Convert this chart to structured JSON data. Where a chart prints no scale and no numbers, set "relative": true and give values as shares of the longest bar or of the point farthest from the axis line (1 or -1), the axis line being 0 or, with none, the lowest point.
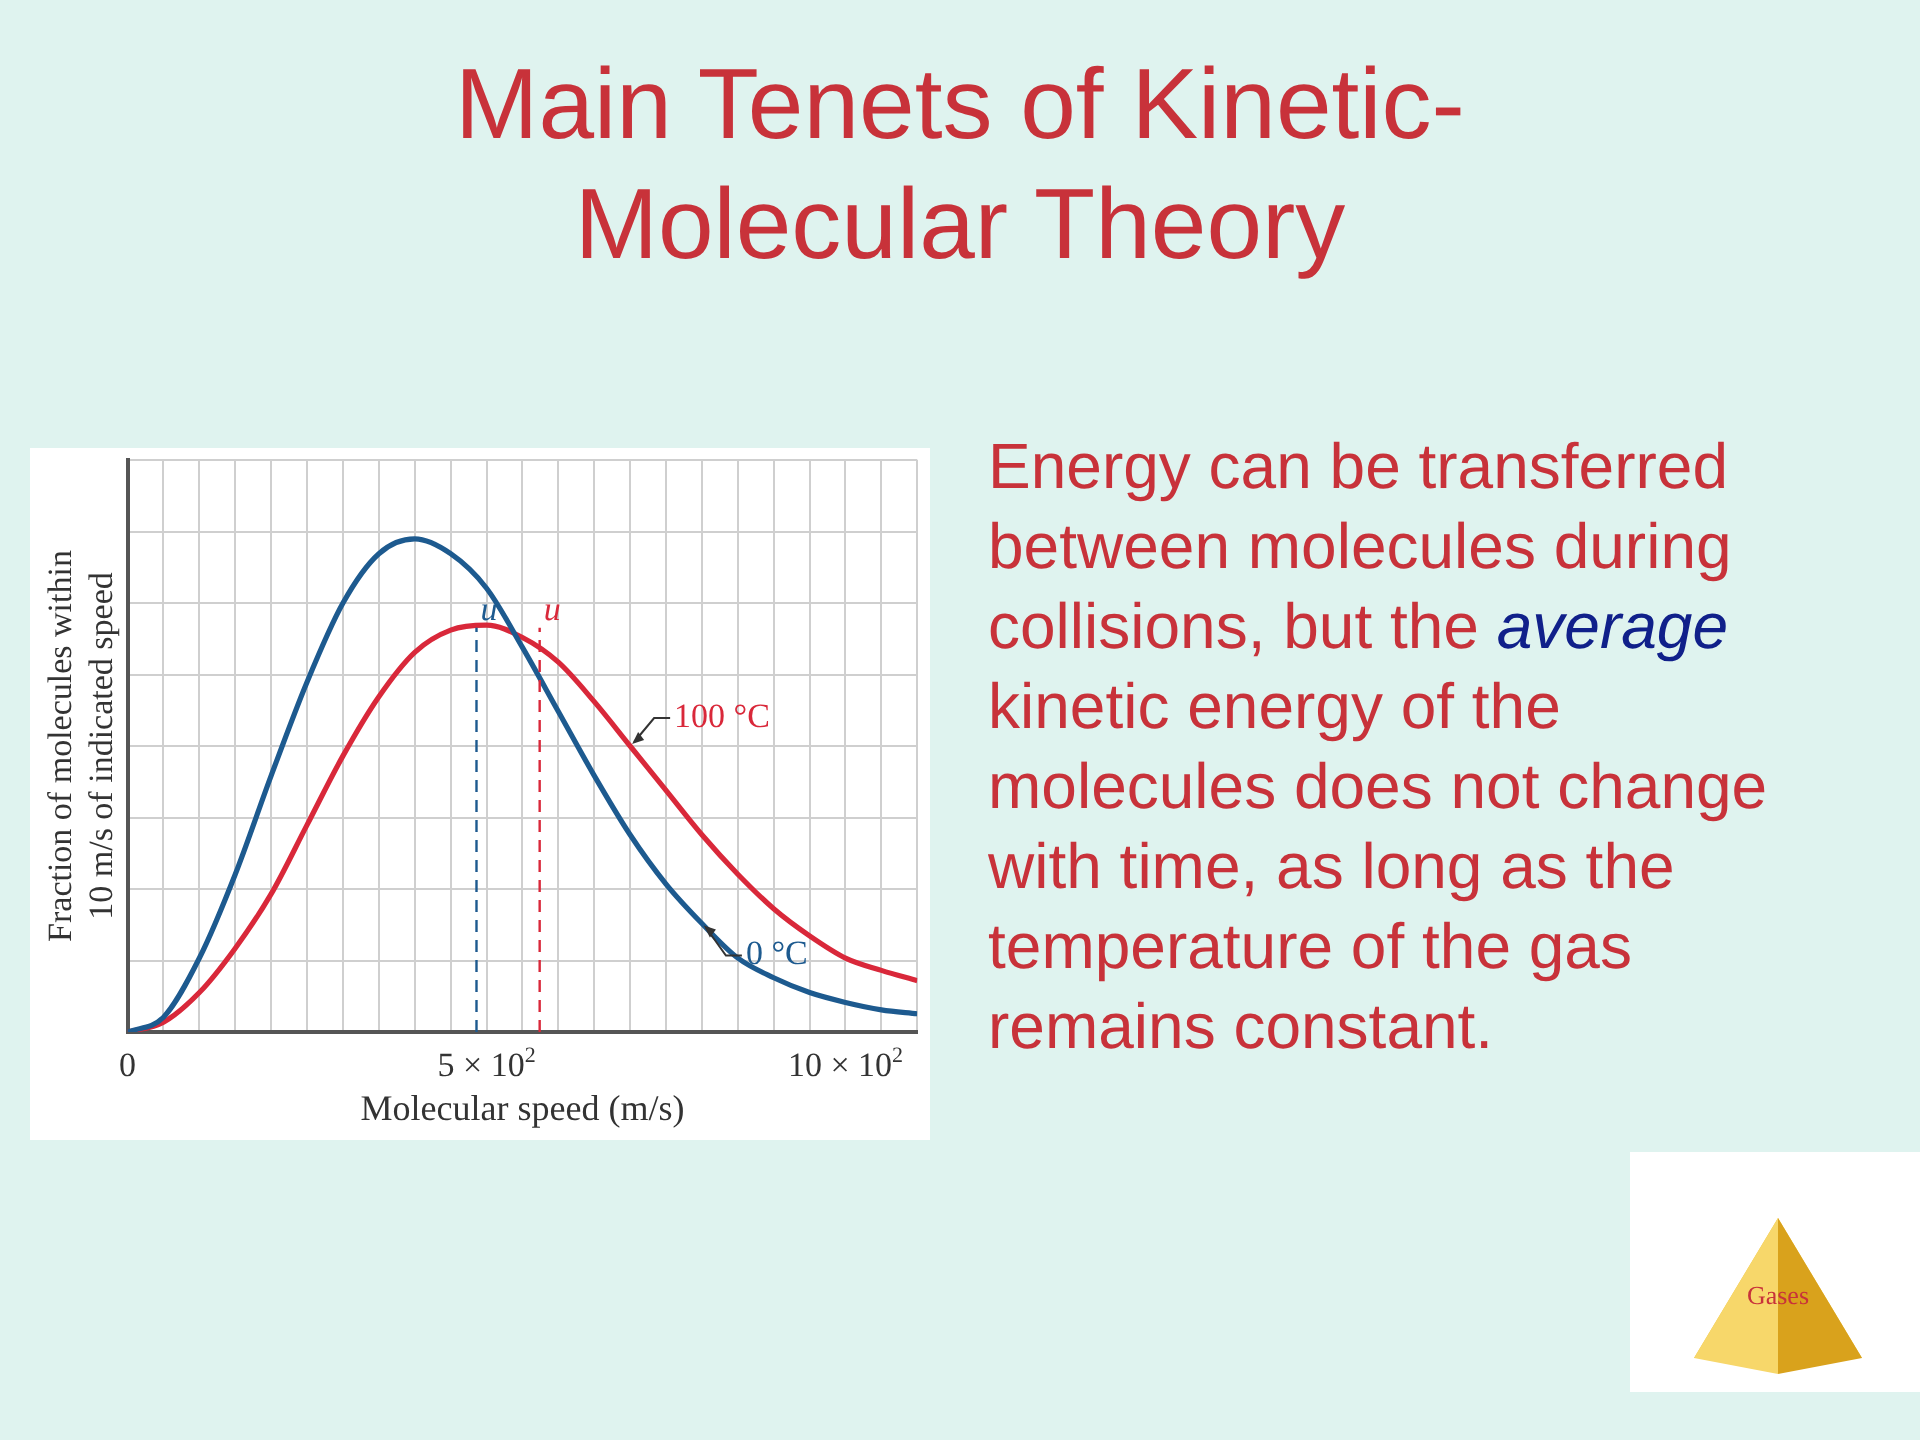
{
  "chart_data": {
    "type": "line",
    "title": "Main Tenets of Kinetic-Molecular Theory",
    "xlabel": "Molecular speed (m/s)",
    "ylabel": "Fraction of molecules within\n10 m/s of indicated speed",
    "relative": true,
    "grid": true,
    "legend": false,
    "marker": "none",
    "line_style": "solid",
    "x": [
      0,
      50,
      100,
      150,
      200,
      250,
      300,
      350,
      400,
      450,
      500,
      550,
      600,
      650,
      700,
      750,
      800,
      850,
      900,
      950,
      1000,
      1050,
      1100
    ],
    "series": [
      {
        "name": "0 °C",
        "color": "#1d5a8f",
        "values": [
          0,
          0.03,
          0.15,
          0.32,
          0.52,
          0.71,
          0.87,
          0.97,
          1.0,
          0.97,
          0.9,
          0.78,
          0.65,
          0.52,
          0.4,
          0.3,
          0.22,
          0.15,
          0.11,
          0.08,
          0.06,
          0.045,
          0.037
        ]
      },
      {
        "name": "100 °C",
        "color": "#d9283a",
        "values": [
          0,
          0.02,
          0.08,
          0.17,
          0.28,
          0.42,
          0.56,
          0.68,
          0.77,
          0.815,
          0.825,
          0.8,
          0.75,
          0.67,
          0.58,
          0.49,
          0.4,
          0.32,
          0.25,
          0.195,
          0.15,
          0.125,
          0.104
        ]
      }
    ],
    "xlim": [
      0,
      1100
    ],
    "xticks": [
      0,
      {
        "value": 50,
        "label": null
      },
      {
        "value": 100,
        "label": null
      },
      {
        "value": 150,
        "label": null
      },
      {
        "value": 200,
        "label": null
      },
      {
        "value": 250,
        "label": null
      },
      {
        "value": 300,
        "label": null
      },
      {
        "value": 350,
        "label": null
      },
      {
        "value": 400,
        "label": null
      },
      {
        "value": 450,
        "label": null
      },
      {
        "value": 500,
        "label": "5 × 10$^{2}$"
      },
      {
        "value": 550,
        "label": null
      },
      {
        "value": 600,
        "label": null
      },
      {
        "value": 650,
        "label": null
      },
      {
        "value": 700,
        "label": null
      },
      {
        "value": 750,
        "label": null
      },
      {
        "value": 800,
        "label": null
      },
      {
        "value": 850,
        "label": null
      },
      {
        "value": 900,
        "label": null
      },
      {
        "value": 950,
        "label": null
      },
      {
        "value": 1000,
        "label": "10 × 10$^{2}$"
      },
      {
        "value": 1050,
        "label": null
      },
      {
        "value": 1100,
        "label": null
      }
    ],
    "ref_lines": [
      {
        "axis": "x",
        "value": 486,
        "label": "u",
        "color": "#1d5a8f",
        "line_style": "dashed"
      },
      {
        "axis": "x",
        "value": 574,
        "label": "u",
        "color": "#d9283a",
        "line_style": "dashed"
      }
    ],
    "annotations": [
      "Energy can be transferred between molecules during collisions, but the ",
      "average",
      " kinetic energy of the molecules does not change with time, as long as the temperature of the gas remains constant.",
      "Gases"
    ]
  }
}
